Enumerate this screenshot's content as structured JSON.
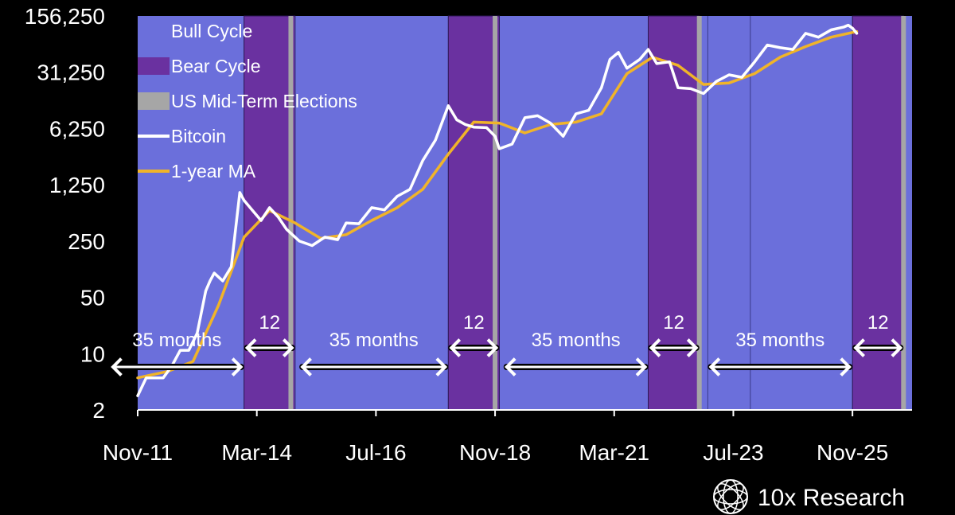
{
  "chart_data": {
    "type": "line",
    "y_scale": "log",
    "ylim": [
      2,
      156250
    ],
    "xlim": [
      "2011-11",
      "2027-01"
    ],
    "y_ticks": [
      {
        "value": 2,
        "label": "2"
      },
      {
        "value": 10,
        "label": "10"
      },
      {
        "value": 50,
        "label": "50"
      },
      {
        "value": 250,
        "label": "250"
      },
      {
        "value": 1250,
        "label": "1,250"
      },
      {
        "value": 6250,
        "label": "6,250"
      },
      {
        "value": 31250,
        "label": "31,250"
      },
      {
        "value": 156250,
        "label": "156,250"
      }
    ],
    "x_ticks": [
      {
        "date": "2011-11",
        "label": "Nov-11"
      },
      {
        "date": "2014-03",
        "label": "Mar-14"
      },
      {
        "date": "2016-07",
        "label": "Jul-16"
      },
      {
        "date": "2018-11",
        "label": "Nov-18"
      },
      {
        "date": "2021-03",
        "label": "Mar-21"
      },
      {
        "date": "2023-07",
        "label": "Jul-23"
      },
      {
        "date": "2025-11",
        "label": "Nov-25"
      }
    ],
    "legend": {
      "position": "top-left",
      "items": [
        {
          "key": "bull",
          "label": "Bull Cycle",
          "color": "#6b6fdb"
        },
        {
          "key": "bear",
          "label": "Bear Cycle",
          "color": "#6a31a0"
        },
        {
          "key": "election",
          "label": "US Mid-Term Elections",
          "color": "#a6a6a6"
        },
        {
          "key": "bitcoin",
          "label": "Bitcoin",
          "color": "#ffffff"
        },
        {
          "key": "ma",
          "label": "1-year MA",
          "color": "#f0b429"
        }
      ]
    },
    "bull_color": "#6b6fdb",
    "bear_color": "#6a31a0",
    "election_color": "#a6a6a6",
    "bear_cycles": [
      {
        "start": "2013-12",
        "end": "2014-12"
      },
      {
        "start": "2017-12",
        "end": "2018-12"
      },
      {
        "start": "2021-11",
        "end": "2022-11"
      },
      {
        "start": "2025-11",
        "end": "2026-11"
      }
    ],
    "midterm_elections": [
      "2014-11",
      "2018-11",
      "2022-11",
      "2026-11"
    ],
    "cycle_spans": [
      {
        "start": "2011-01",
        "end": "2013-12",
        "label": "35 months"
      },
      {
        "start": "2013-12",
        "end": "2014-12",
        "label": "12"
      },
      {
        "start": "2015-01",
        "end": "2017-12",
        "label": "35 months"
      },
      {
        "start": "2017-12",
        "end": "2018-12",
        "label": "12"
      },
      {
        "start": "2019-01",
        "end": "2021-11",
        "label": "35 months"
      },
      {
        "start": "2021-11",
        "end": "2022-11",
        "label": "12"
      },
      {
        "start": "2023-01",
        "end": "2025-11",
        "label": "35 months"
      },
      {
        "start": "2025-11",
        "end": "2026-11",
        "label": "12"
      }
    ],
    "series": [
      {
        "name": "Bitcoin",
        "color": "#ffffff",
        "x": [
          "2011-11",
          "2012-01",
          "2012-03",
          "2012-05",
          "2012-07",
          "2012-09",
          "2012-11",
          "2013-01",
          "2013-03",
          "2013-04",
          "2013-05",
          "2013-07",
          "2013-09",
          "2013-11",
          "2013-12",
          "2014-02",
          "2014-04",
          "2014-06",
          "2014-08",
          "2014-10",
          "2015-01",
          "2015-04",
          "2015-07",
          "2015-10",
          "2015-12",
          "2016-03",
          "2016-06",
          "2016-09",
          "2016-12",
          "2017-03",
          "2017-06",
          "2017-09",
          "2017-12",
          "2018-02",
          "2018-04",
          "2018-06",
          "2018-09",
          "2018-11",
          "2018-12",
          "2019-03",
          "2019-06",
          "2019-09",
          "2019-12",
          "2020-03",
          "2020-06",
          "2020-09",
          "2020-12",
          "2021-02",
          "2021-04",
          "2021-06",
          "2021-09",
          "2021-11",
          "2022-01",
          "2022-04",
          "2022-06",
          "2022-09",
          "2022-12",
          "2023-03",
          "2023-06",
          "2023-09",
          "2023-12",
          "2024-03",
          "2024-06",
          "2024-09",
          "2024-12",
          "2025-03",
          "2025-06",
          "2025-09",
          "2025-10",
          "2025-11",
          "2025-12"
        ],
        "values": [
          3,
          5,
          5,
          5,
          7,
          11,
          11,
          18,
          60,
          80,
          100,
          80,
          120,
          1000,
          800,
          600,
          450,
          650,
          500,
          350,
          250,
          220,
          280,
          260,
          420,
          410,
          650,
          610,
          900,
          1100,
          2500,
          4500,
          12000,
          8000,
          7000,
          6500,
          6400,
          5000,
          3500,
          4000,
          8500,
          9000,
          7300,
          5000,
          9500,
          10500,
          20000,
          45000,
          55000,
          35000,
          45000,
          60000,
          40000,
          42000,
          20000,
          19500,
          17000,
          24000,
          29000,
          27000,
          42000,
          68000,
          63000,
          60000,
          95000,
          85000,
          105000,
          114000,
          120000,
          110000,
          95000
        ]
      },
      {
        "name": "1-year MA",
        "color": "#f0b429",
        "x": [
          "2011-11",
          "2012-06",
          "2012-12",
          "2013-06",
          "2013-12",
          "2014-06",
          "2014-12",
          "2015-06",
          "2015-12",
          "2016-06",
          "2016-12",
          "2017-06",
          "2017-12",
          "2018-06",
          "2018-12",
          "2019-06",
          "2019-12",
          "2020-06",
          "2020-12",
          "2021-06",
          "2021-12",
          "2022-06",
          "2022-12",
          "2023-06",
          "2023-12",
          "2024-06",
          "2024-12",
          "2025-06",
          "2025-12"
        ],
        "values": [
          5,
          6,
          8,
          40,
          280,
          600,
          420,
          270,
          300,
          450,
          650,
          1100,
          3000,
          7500,
          7300,
          5500,
          7000,
          7500,
          9500,
          30000,
          48000,
          38000,
          22000,
          23000,
          30000,
          48000,
          65000,
          85000,
          100000
        ]
      }
    ]
  },
  "brand": {
    "name": "10x Research",
    "icon": "globe-icon"
  }
}
